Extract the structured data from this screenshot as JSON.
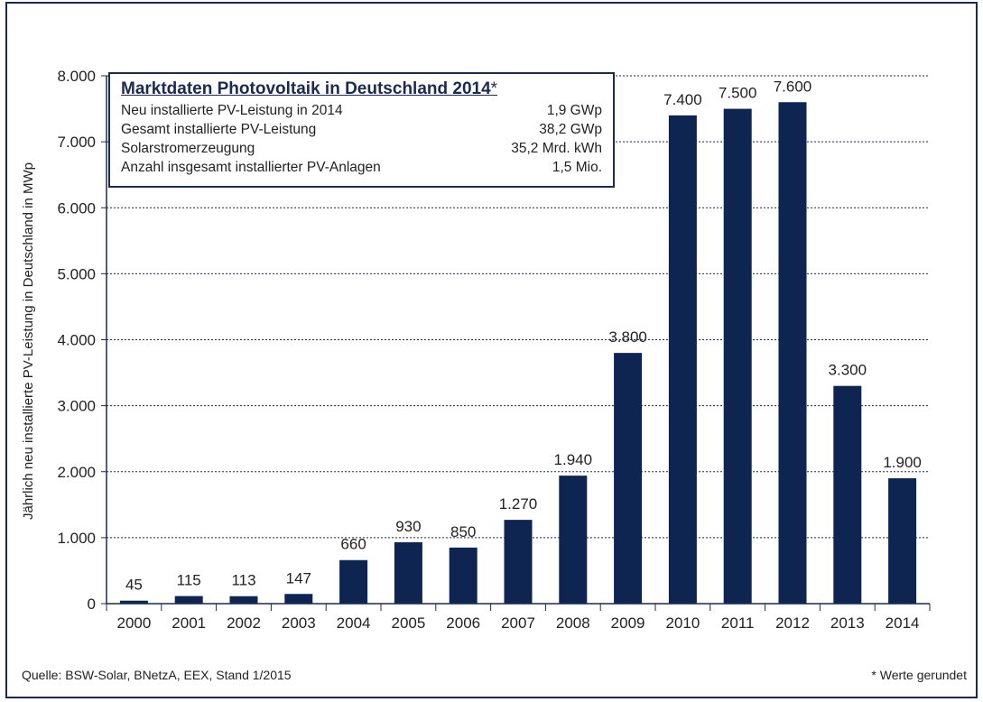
{
  "chart_data": {
    "type": "bar",
    "title": "Marktdaten Photovoltaik in Deutschland 2014*",
    "ylabel": "Jährlich neu installierte PV-Leistung in Deutschland in MWp",
    "xlabel": "",
    "ylim": [
      0,
      8000
    ],
    "grid": true,
    "yticks": [
      0,
      1000,
      2000,
      3000,
      4000,
      5000,
      6000,
      7000,
      8000
    ],
    "ytick_labels": [
      "0",
      "1.000",
      "2.000",
      "3.000",
      "4.000",
      "5.000",
      "6.000",
      "7.000",
      "8.000"
    ],
    "categories": [
      "2000",
      "2001",
      "2002",
      "2003",
      "2004",
      "2005",
      "2006",
      "2007",
      "2008",
      "2009",
      "2010",
      "2011",
      "2012",
      "2013",
      "2014"
    ],
    "values": [
      45,
      115,
      113,
      147,
      660,
      930,
      850,
      1270,
      1940,
      3800,
      7400,
      7500,
      7600,
      3300,
      1900
    ],
    "value_labels": [
      "45",
      "115",
      "113",
      "147",
      "660",
      "930",
      "850",
      "1.270",
      "1.940",
      "3.800",
      "7.400",
      "7.500",
      "7.600",
      "3.300",
      "1.900"
    ],
    "bar_color": "#0d2550"
  },
  "info_box": {
    "title": "Marktdaten Photovoltaik in Deutschland 2014",
    "title_suffix": "*",
    "rows": [
      {
        "label": "Neu installierte PV-Leistung in 2014",
        "value": "1,9 GWp"
      },
      {
        "label": "Gesamt installierte PV-Leistung",
        "value": "38,2 GWp"
      },
      {
        "label": "Solarstromerzeugung",
        "value": "35,2 Mrd. kWh"
      },
      {
        "label": "Anzahl insgesamt installierter PV-Anlagen",
        "value": "1,5 Mio."
      }
    ]
  },
  "source": "Quelle: BSW-Solar, BNetzA, EEX, Stand 1/2015",
  "footnote": "* Werte gerundet"
}
